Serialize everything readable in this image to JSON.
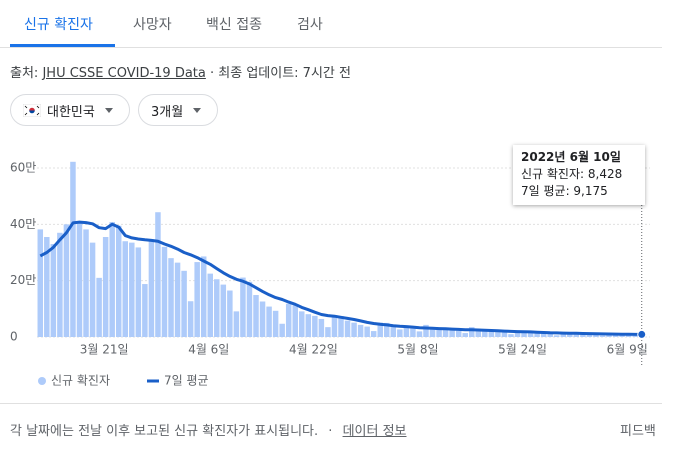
{
  "tabs": [
    "신규 확진자",
    "사망자",
    "백신 접종",
    "검사"
  ],
  "source": {
    "label": "출처:",
    "link": "JHU CSSE COVID-19 Data",
    "updated": "· 최종 업데이트: 7시간 전"
  },
  "filters": [
    "대한민국",
    "3개월"
  ],
  "chart_data": {
    "type": "bar",
    "categories": [
      null,
      null,
      null,
      null,
      null,
      null,
      null,
      null,
      null,
      null,
      null,
      "3월 21일",
      null,
      null,
      null,
      null,
      null,
      null,
      null,
      null,
      null,
      null,
      null,
      null,
      null,
      null,
      null,
      "4월 6일",
      null,
      null,
      null,
      null,
      null,
      null,
      null,
      null,
      null,
      null,
      null,
      null,
      null,
      null,
      null,
      "4월 22일",
      null,
      null,
      null,
      null,
      null,
      null,
      null,
      null,
      null,
      null,
      null,
      null,
      null,
      null,
      null,
      "5월 8일",
      null,
      null,
      null,
      null,
      null,
      null,
      null,
      null,
      null,
      null,
      null,
      null,
      null,
      null,
      null,
      "5월 24일",
      null,
      null,
      null,
      null,
      null,
      null,
      null,
      null,
      null,
      null,
      null,
      null,
      null,
      null,
      null,
      "6월 9일",
      null
    ],
    "series": [
      {
        "name": "신규 확진자",
        "type": "bar",
        "color": "#aecbfa",
        "values": [
          382000,
          355000,
          330000,
          370000,
          400000,
          622000,
          405000,
          382000,
          335000,
          210000,
          355000,
          408000,
          395000,
          340000,
          335000,
          318000,
          188000,
          347000,
          443000,
          320000,
          280000,
          264000,
          235000,
          127000,
          266000,
          286000,
          225000,
          205000,
          186000,
          165000,
          91000,
          211000,
          196000,
          149000,
          126000,
          108000,
          93000,
          47000,
          118000,
          112000,
          91000,
          81000,
          75000,
          64000,
          35000,
          77000,
          74000,
          58000,
          51000,
          43000,
          37000,
          21000,
          51000,
          50000,
          43000,
          27000,
          40000,
          38000,
          20000,
          43000,
          35000,
          30000,
          26000,
          26000,
          22000,
          14000,
          35000,
          29000,
          23000,
          22000,
          20000,
          17000,
          10000,
          23000,
          23000,
          18000,
          16000,
          16000,
          13000,
          6000,
          17000,
          15000,
          13000,
          13000,
          9000,
          10000,
          5000,
          13000,
          12000,
          10000,
          7000,
          3800,
          8428
        ]
      },
      {
        "name": "7일 평균",
        "type": "line",
        "color": "#1a5fc8",
        "values": [
          288000,
          300000,
          318000,
          345000,
          370000,
          405000,
          408000,
          406000,
          402000,
          388000,
          385000,
          400000,
          390000,
          360000,
          352000,
          348000,
          345000,
          343000,
          340000,
          330000,
          322000,
          312000,
          300000,
          292000,
          282000,
          270000,
          258000,
          243000,
          228000,
          215000,
          205000,
          198000,
          188000,
          175000,
          162000,
          150000,
          140000,
          133000,
          124000,
          116000,
          105000,
          97000,
          88000,
          80000,
          76000,
          74000,
          70000,
          66000,
          62000,
          57000,
          52000,
          48000,
          45000,
          43000,
          40000,
          38000,
          37000,
          35000,
          33000,
          32000,
          31000,
          30000,
          29000,
          28000,
          27000,
          26000,
          25500,
          25000,
          24000,
          23000,
          22000,
          21000,
          20000,
          19000,
          18500,
          18000,
          17000,
          16000,
          15000,
          14500,
          14000,
          13500,
          13000,
          12500,
          12000,
          11500,
          11000,
          10500,
          10200,
          10000,
          9600,
          9400,
          9175
        ]
      }
    ],
    "ylim": [
      0,
      600000
    ],
    "yticks": [
      {
        "value": 0,
        "label": "0"
      },
      {
        "value": 200000,
        "label": "20만"
      },
      {
        "value": 400000,
        "label": "40만"
      },
      {
        "value": 600000,
        "label": "60만"
      }
    ],
    "grid": true,
    "tooltip": {
      "title": "2022년 6월 10일",
      "lines": [
        "신규 확진자: 8,428",
        "7일 평균: 9,175"
      ]
    }
  },
  "footer": {
    "note": "각 날짜에는 전날 이후 보고된 신규 확진자가 표시됩니다.",
    "link": "데이터 정보",
    "feedback": "피드백"
  }
}
